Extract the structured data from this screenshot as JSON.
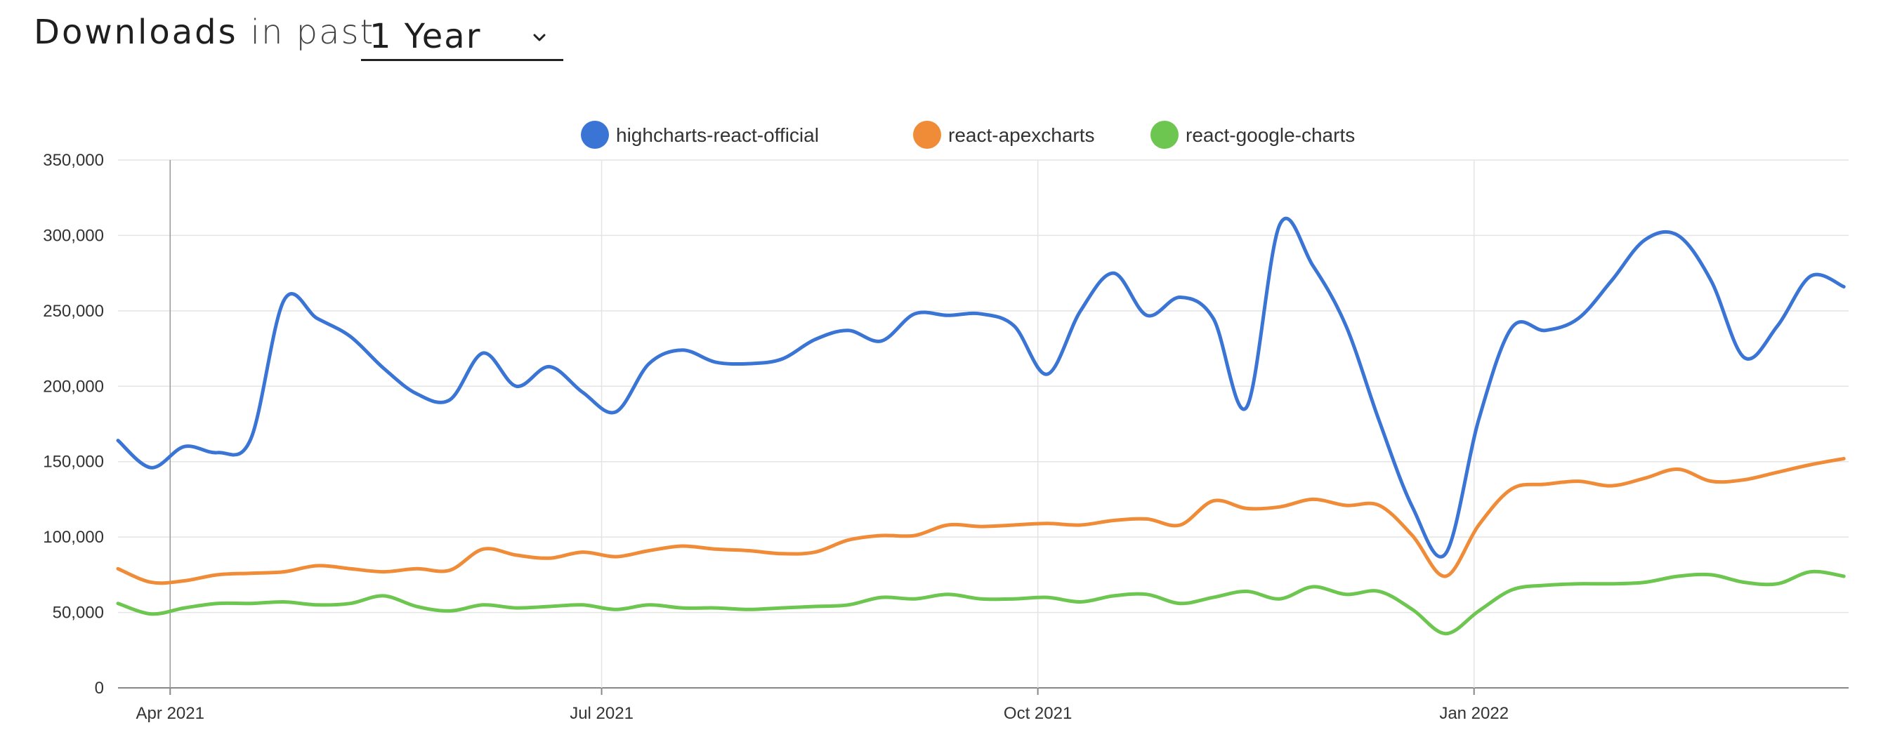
{
  "header": {
    "title": "Downloads",
    "subtitle": "in past",
    "period_selected": "1 Year"
  },
  "chart_data": {
    "type": "line",
    "x_range": [
      "2021-03-21",
      "2022-03-21"
    ],
    "ylim": [
      0,
      350000
    ],
    "y_ticks": [
      0,
      50000,
      100000,
      150000,
      200000,
      250000,
      300000,
      350000
    ],
    "y_tick_labels": [
      "0",
      "50,000",
      "100,000",
      "150,000",
      "200,000",
      "250,000",
      "300,000",
      "350,000"
    ],
    "x_ticks": [
      "2021-04-01",
      "2021-07-01",
      "2021-10-01",
      "2022-01-01"
    ],
    "x_tick_labels": [
      "Apr 2021",
      "Jul 2021",
      "Oct 2021",
      "Jan 2022"
    ],
    "grid": true,
    "legend_position": "top-center",
    "x": [
      "2021-03-21",
      "2021-03-28",
      "2021-04-04",
      "2021-04-11",
      "2021-04-18",
      "2021-04-25",
      "2021-05-02",
      "2021-05-09",
      "2021-05-16",
      "2021-05-23",
      "2021-05-30",
      "2021-06-06",
      "2021-06-13",
      "2021-06-20",
      "2021-06-27",
      "2021-07-04",
      "2021-07-11",
      "2021-07-18",
      "2021-07-25",
      "2021-08-01",
      "2021-08-08",
      "2021-08-15",
      "2021-08-22",
      "2021-08-29",
      "2021-09-05",
      "2021-09-12",
      "2021-09-19",
      "2021-09-26",
      "2021-10-03",
      "2021-10-10",
      "2021-10-17",
      "2021-10-24",
      "2021-10-31",
      "2021-11-07",
      "2021-11-14",
      "2021-11-21",
      "2021-11-28",
      "2021-12-05",
      "2021-12-12",
      "2021-12-19",
      "2021-12-26",
      "2022-01-02",
      "2022-01-09",
      "2022-01-16",
      "2022-01-23",
      "2022-01-30",
      "2022-02-06",
      "2022-02-13",
      "2022-02-20",
      "2022-02-27",
      "2022-03-06",
      "2022-03-13",
      "2022-03-20"
    ],
    "series": [
      {
        "name": "highcharts-react-official",
        "color": "#3a75d6",
        "values": [
          164000,
          146000,
          160000,
          156000,
          165000,
          257000,
          245000,
          233000,
          212000,
          195000,
          191000,
          222000,
          200000,
          213000,
          196000,
          183000,
          215000,
          224000,
          216000,
          215000,
          218000,
          231000,
          237000,
          230000,
          248000,
          247000,
          248000,
          240000,
          208000,
          250000,
          275000,
          247000,
          259000,
          245000,
          186000,
          307000,
          280000,
          240000,
          177000,
          120000,
          89000,
          178000,
          239000,
          237000,
          245000,
          270000,
          297000,
          300000,
          270000,
          219000,
          240000,
          273000,
          266000
        ]
      },
      {
        "name": "react-apexcharts",
        "color": "#f08c38",
        "values": [
          79000,
          70000,
          71000,
          75000,
          76000,
          77000,
          81000,
          79000,
          77000,
          79000,
          78000,
          92000,
          88000,
          86000,
          90000,
          87000,
          91000,
          94000,
          92000,
          91000,
          89000,
          90000,
          98000,
          101000,
          101000,
          108000,
          107000,
          108000,
          109000,
          108000,
          111000,
          112000,
          108000,
          124000,
          119000,
          120000,
          125000,
          121000,
          121000,
          101000,
          74000,
          108000,
          132000,
          135000,
          137000,
          134000,
          139000,
          145000,
          137000,
          138000,
          143000,
          148000,
          152000
        ]
      },
      {
        "name": "react-google-charts",
        "color": "#6cc64f",
        "values": [
          56000,
          49000,
          53000,
          56000,
          56000,
          57000,
          55000,
          56000,
          61000,
          54000,
          51000,
          55000,
          53000,
          54000,
          55000,
          52000,
          55000,
          53000,
          53000,
          52000,
          53000,
          54000,
          55000,
          60000,
          59000,
          62000,
          59000,
          59000,
          60000,
          57000,
          61000,
          62000,
          56000,
          60000,
          64000,
          59000,
          67000,
          62000,
          64000,
          52000,
          36000,
          51000,
          65000,
          68000,
          69000,
          69000,
          70000,
          74000,
          75000,
          70000,
          69000,
          77000,
          74000
        ]
      }
    ]
  }
}
